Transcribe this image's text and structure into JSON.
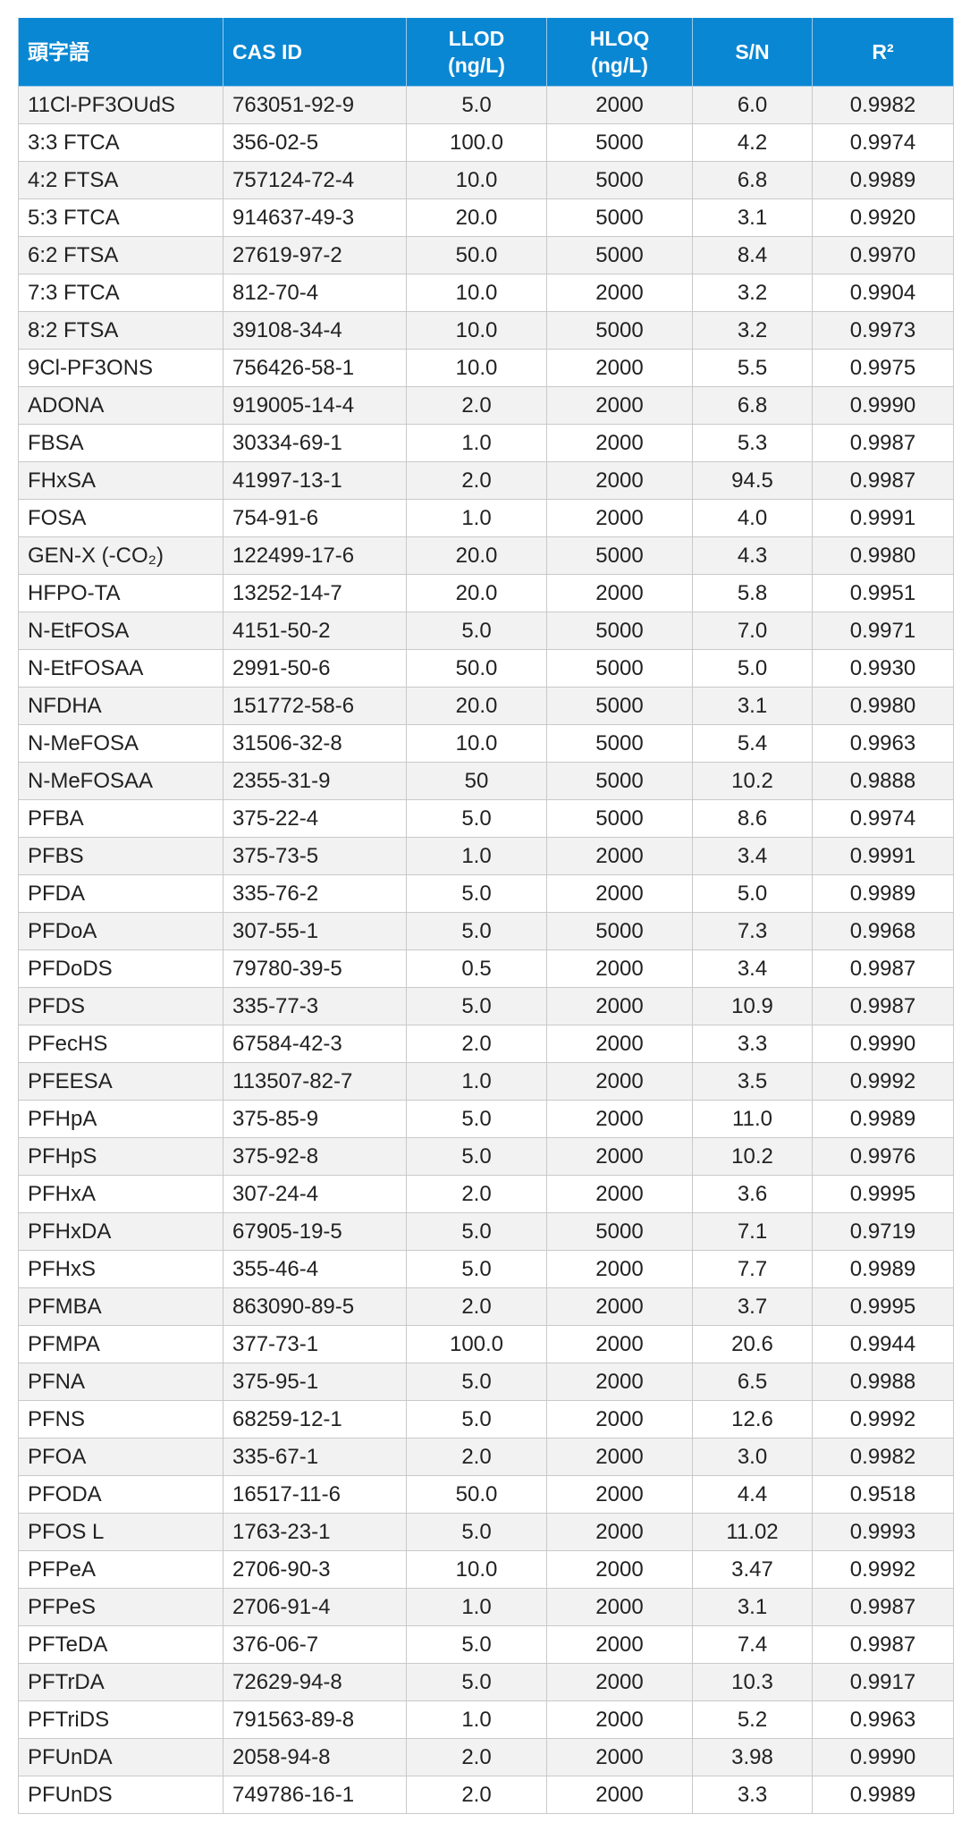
{
  "table": {
    "headers": {
      "name": "頭字語",
      "cas": "CAS ID",
      "llod": "LLOD\n(ng/L)",
      "hloq": "HLOQ\n(ng/L)",
      "sn": "S/N",
      "r2": "R²"
    },
    "rows": [
      {
        "name": "11Cl-PF3OUdS",
        "cas": "763051-92-9",
        "llod": "5.0",
        "hloq": "2000",
        "sn": "6.0",
        "r2": "0.9982"
      },
      {
        "name": "3:3 FTCA",
        "cas": "356-02-5",
        "llod": "100.0",
        "hloq": "5000",
        "sn": "4.2",
        "r2": "0.9974"
      },
      {
        "name": "4:2 FTSA",
        "cas": "757124-72-4",
        "llod": "10.0",
        "hloq": "5000",
        "sn": "6.8",
        "r2": "0.9989"
      },
      {
        "name": "5:3 FTCA",
        "cas": "914637-49-3",
        "llod": "20.0",
        "hloq": "5000",
        "sn": "3.1",
        "r2": "0.9920"
      },
      {
        "name": "6:2 FTSA",
        "cas": "27619-97-2",
        "llod": "50.0",
        "hloq": "5000",
        "sn": "8.4",
        "r2": "0.9970"
      },
      {
        "name": "7:3 FTCA",
        "cas": "812-70-4",
        "llod": "10.0",
        "hloq": "2000",
        "sn": "3.2",
        "r2": "0.9904"
      },
      {
        "name": "8:2 FTSA",
        "cas": "39108-34-4",
        "llod": "10.0",
        "hloq": "5000",
        "sn": "3.2",
        "r2": "0.9973"
      },
      {
        "name": "9Cl-PF3ONS",
        "cas": "756426-58-1",
        "llod": "10.0",
        "hloq": "2000",
        "sn": "5.5",
        "r2": "0.9975"
      },
      {
        "name": "ADONA",
        "cas": "919005-14-4",
        "llod": "2.0",
        "hloq": "2000",
        "sn": "6.8",
        "r2": "0.9990"
      },
      {
        "name": "FBSA",
        "cas": "30334-69-1",
        "llod": "1.0",
        "hloq": "2000",
        "sn": "5.3",
        "r2": "0.9987"
      },
      {
        "name": "FHxSA",
        "cas": "41997-13-1",
        "llod": "2.0",
        "hloq": "2000",
        "sn": "94.5",
        "r2": "0.9987"
      },
      {
        "name": "FOSA",
        "cas": "754-91-6",
        "llod": "1.0",
        "hloq": "2000",
        "sn": "4.0",
        "r2": "0.9991"
      },
      {
        "name": "GEN-X (-CO₂)",
        "cas": "122499-17-6",
        "llod": "20.0",
        "hloq": "5000",
        "sn": "4.3",
        "r2": "0.9980"
      },
      {
        "name": "HFPO-TA",
        "cas": "13252-14-7",
        "llod": "20.0",
        "hloq": "2000",
        "sn": "5.8",
        "r2": "0.9951"
      },
      {
        "name": "N-EtFOSA",
        "cas": "4151-50-2",
        "llod": "5.0",
        "hloq": "5000",
        "sn": "7.0",
        "r2": "0.9971"
      },
      {
        "name": "N-EtFOSAA",
        "cas": "2991-50-6",
        "llod": "50.0",
        "hloq": "5000",
        "sn": "5.0",
        "r2": "0.9930"
      },
      {
        "name": "NFDHA",
        "cas": "151772-58-6",
        "llod": "20.0",
        "hloq": "5000",
        "sn": "3.1",
        "r2": "0.9980"
      },
      {
        "name": "N-MeFOSA",
        "cas": "31506-32-8",
        "llod": "10.0",
        "hloq": "5000",
        "sn": "5.4",
        "r2": "0.9963"
      },
      {
        "name": "N-MeFOSAA",
        "cas": "2355-31-9",
        "llod": "50",
        "hloq": "5000",
        "sn": "10.2",
        "r2": "0.9888"
      },
      {
        "name": "PFBA",
        "cas": "375-22-4",
        "llod": "5.0",
        "hloq": "5000",
        "sn": "8.6",
        "r2": "0.9974"
      },
      {
        "name": "PFBS",
        "cas": "375-73-5",
        "llod": "1.0",
        "hloq": "2000",
        "sn": "3.4",
        "r2": "0.9991"
      },
      {
        "name": "PFDA",
        "cas": "335-76-2",
        "llod": "5.0",
        "hloq": "2000",
        "sn": "5.0",
        "r2": "0.9989"
      },
      {
        "name": "PFDoA",
        "cas": "307-55-1",
        "llod": "5.0",
        "hloq": "5000",
        "sn": "7.3",
        "r2": "0.9968"
      },
      {
        "name": "PFDoDS",
        "cas": "79780-39-5",
        "llod": "0.5",
        "hloq": "2000",
        "sn": "3.4",
        "r2": "0.9987"
      },
      {
        "name": "PFDS",
        "cas": "335-77-3",
        "llod": "5.0",
        "hloq": "2000",
        "sn": "10.9",
        "r2": "0.9987"
      },
      {
        "name": "PFecHS",
        "cas": "67584-42-3",
        "llod": "2.0",
        "hloq": "2000",
        "sn": "3.3",
        "r2": "0.9990"
      },
      {
        "name": "PFEESA",
        "cas": "113507-82-7",
        "llod": "1.0",
        "hloq": "2000",
        "sn": "3.5",
        "r2": "0.9992"
      },
      {
        "name": "PFHpA",
        "cas": "375-85-9",
        "llod": "5.0",
        "hloq": "2000",
        "sn": "11.0",
        "r2": "0.9989"
      },
      {
        "name": "PFHpS",
        "cas": "375-92-8",
        "llod": "5.0",
        "hloq": "2000",
        "sn": "10.2",
        "r2": "0.9976"
      },
      {
        "name": "PFHxA",
        "cas": "307-24-4",
        "llod": "2.0",
        "hloq": "2000",
        "sn": "3.6",
        "r2": "0.9995"
      },
      {
        "name": "PFHxDA",
        "cas": "67905-19-5",
        "llod": "5.0",
        "hloq": "5000",
        "sn": "7.1",
        "r2": "0.9719"
      },
      {
        "name": "PFHxS",
        "cas": "355-46-4",
        "llod": "5.0",
        "hloq": "2000",
        "sn": "7.7",
        "r2": "0.9989"
      },
      {
        "name": "PFMBA",
        "cas": "863090-89-5",
        "llod": "2.0",
        "hloq": "2000",
        "sn": "3.7",
        "r2": "0.9995"
      },
      {
        "name": "PFMPA",
        "cas": "377-73-1",
        "llod": "100.0",
        "hloq": "2000",
        "sn": "20.6",
        "r2": "0.9944"
      },
      {
        "name": "PFNA",
        "cas": "375-95-1",
        "llod": "5.0",
        "hloq": "2000",
        "sn": "6.5",
        "r2": "0.9988"
      },
      {
        "name": "PFNS",
        "cas": "68259-12-1",
        "llod": "5.0",
        "hloq": "2000",
        "sn": "12.6",
        "r2": "0.9992"
      },
      {
        "name": "PFOA",
        "cas": "335-67-1",
        "llod": "2.0",
        "hloq": "2000",
        "sn": "3.0",
        "r2": "0.9982"
      },
      {
        "name": "PFODA",
        "cas": "16517-11-6",
        "llod": "50.0",
        "hloq": "2000",
        "sn": "4.4",
        "r2": "0.9518"
      },
      {
        "name": "PFOS L",
        "cas": "1763-23-1",
        "llod": "5.0",
        "hloq": "2000",
        "sn": "11.02",
        "r2": "0.9993"
      },
      {
        "name": "PFPeA",
        "cas": "2706-90-3",
        "llod": "10.0",
        "hloq": "2000",
        "sn": "3.47",
        "r2": "0.9992"
      },
      {
        "name": "PFPeS",
        "cas": "2706-91-4",
        "llod": "1.0",
        "hloq": "2000",
        "sn": "3.1",
        "r2": "0.9987"
      },
      {
        "name": "PFTeDA",
        "cas": "376-06-7",
        "llod": "5.0",
        "hloq": "2000",
        "sn": "7.4",
        "r2": "0.9987"
      },
      {
        "name": "PFTrDA",
        "cas": "72629-94-8",
        "llod": "5.0",
        "hloq": "2000",
        "sn": "10.3",
        "r2": "0.9917"
      },
      {
        "name": "PFTriDS",
        "cas": "791563-89-8",
        "llod": "1.0",
        "hloq": "2000",
        "sn": "5.2",
        "r2": "0.9963"
      },
      {
        "name": "PFUnDA",
        "cas": "2058-94-8",
        "llod": "2.0",
        "hloq": "2000",
        "sn": "3.98",
        "r2": "0.9990"
      },
      {
        "name": "PFUnDS",
        "cas": "749786-16-1",
        "llod": "2.0",
        "hloq": "2000",
        "sn": "3.3",
        "r2": "0.9989"
      }
    ]
  }
}
